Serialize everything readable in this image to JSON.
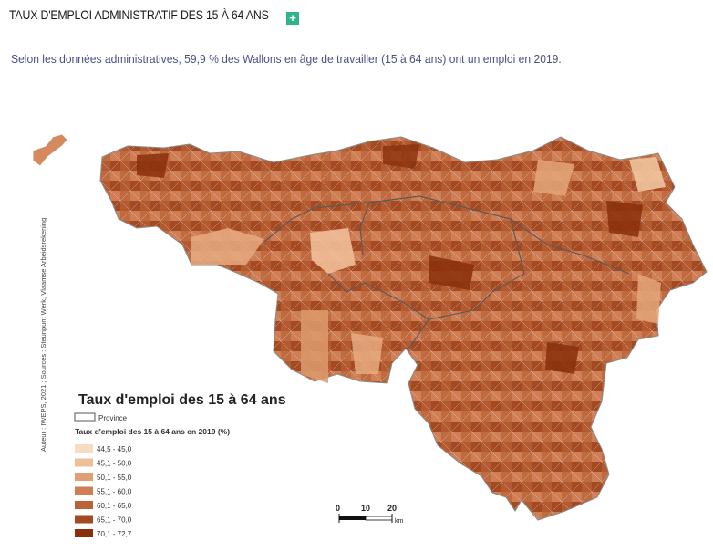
{
  "header": {
    "title": "TAUX D'EMPLOI ADMINISTRATIF DES 15 À 64 ANS",
    "expand_icon": "plus-icon"
  },
  "intro": "Selon les données administratives, 59,9 % des Wallons en âge de travailler (15 à 64 ans) ont un emploi en 2019.",
  "map": {
    "source": "Auteur : IWEPS, 2021 ; Sources : Steunpunt Werk, Vlaamse Arbeidsrekening",
    "legend_title": "Taux d'emploi des 15 à 64 ans",
    "province_label": "Province",
    "classes_title": "Taux d'emploi des 15 à 64 ans en 2019 (%)",
    "classes": [
      {
        "label": "44,5 - 45,0",
        "color": "#f6dcc1"
      },
      {
        "label": "45,1 - 50,0",
        "color": "#efbf98"
      },
      {
        "label": "50,1 - 55,0",
        "color": "#e09f74"
      },
      {
        "label": "55,1 - 60,0",
        "color": "#cf7e55"
      },
      {
        "label": "60,1 - 65,0",
        "color": "#bb6237"
      },
      {
        "label": "65,1 - 70,0",
        "color": "#a44a22"
      },
      {
        "label": "70,1 - 72,7",
        "color": "#8a2f0c"
      }
    ],
    "scale_ticks": [
      "0",
      "10",
      "20"
    ],
    "scale_unit": "km"
  }
}
